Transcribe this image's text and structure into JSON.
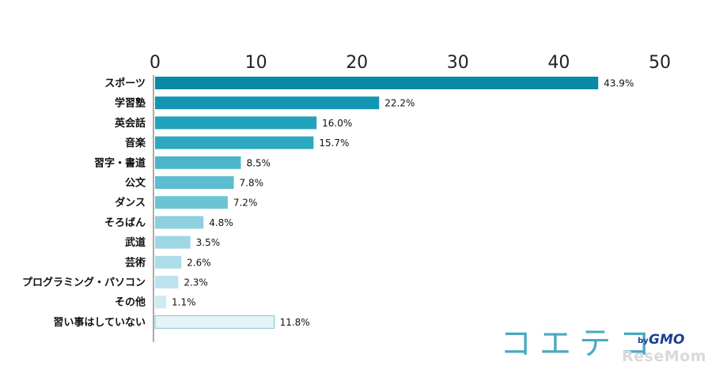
{
  "chart_data": {
    "type": "bar",
    "orientation": "horizontal",
    "xlim": [
      0,
      50
    ],
    "ticks": [
      0,
      10,
      20,
      30,
      40,
      50
    ],
    "grid": false,
    "categories": [
      "スポーツ",
      "学習塾",
      "英会話",
      "音楽",
      "習字・書道",
      "公文",
      "ダンス",
      "そろばん",
      "武道",
      "芸術",
      "プログラミング・パソコン",
      "その他",
      "習い事はしていない"
    ],
    "values": [
      43.9,
      22.2,
      16.0,
      15.7,
      8.5,
      7.8,
      7.2,
      4.8,
      3.5,
      2.6,
      2.3,
      1.1,
      11.8
    ],
    "value_labels": [
      "43.9%",
      "22.2%",
      "16.0%",
      "15.7%",
      "8.5%",
      "7.8%",
      "7.2%",
      "4.8%",
      "3.5%",
      "2.6%",
      "2.3%",
      "1.1%",
      "11.8%"
    ],
    "colors": [
      "#0a88a8",
      "#1296b3",
      "#22a3bd",
      "#2ea8c1",
      "#4db5cb",
      "#5cbcd0",
      "#6cc3d4",
      "#8dd0de",
      "#9ed7e3",
      "#acdde8",
      "#bde4ee",
      "#ccebf2",
      "#e5f4f8"
    ],
    "last_bar_border": "#7fc6d8"
  },
  "branding": {
    "logo_text": "コエテコ",
    "by_text": "by",
    "company": "GMO",
    "watermark": "ReseMom"
  }
}
